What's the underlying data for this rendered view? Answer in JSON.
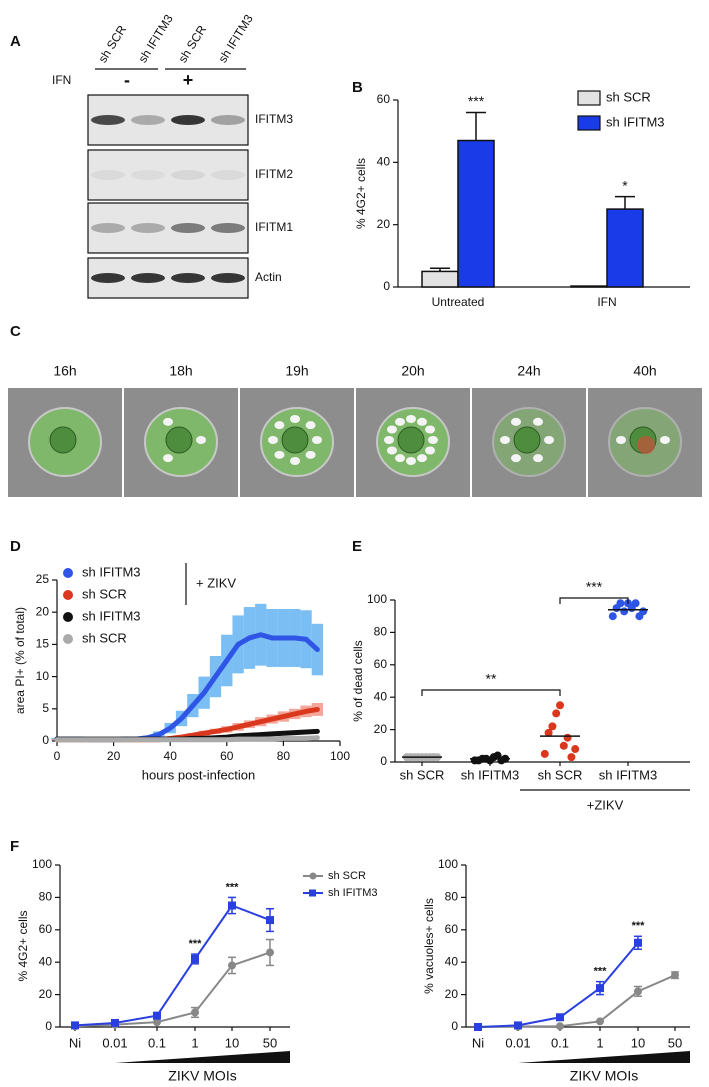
{
  "blot": {
    "panel": "A",
    "lanes": [
      "sh SCR",
      "sh IFITM3",
      "sh SCR",
      "sh IFITM3"
    ],
    "treatment_label": "IFN",
    "treatments": [
      "-",
      "+"
    ],
    "bands": [
      "IFITM3",
      "IFITM2",
      "IFITM1",
      "Actin"
    ]
  },
  "timelapse": {
    "panel": "C",
    "times": [
      "16h",
      "18h",
      "19h",
      "20h",
      "24h",
      "40h"
    ]
  },
  "chart_data": [
    {
      "panel": "B",
      "type": "bar",
      "ylabel": "% 4G2+ cells",
      "categories": [
        "Untreated",
        "IFN"
      ],
      "ylim": [
        0,
        60
      ],
      "yticks": [
        0,
        20,
        40,
        60
      ],
      "legend": "upper right",
      "series": [
        {
          "name": "sh SCR",
          "color": "#e2e2e2",
          "values": [
            5,
            0.3
          ],
          "errors": [
            1,
            null
          ]
        },
        {
          "name": "sh IFITM3",
          "color": "#1a3be8",
          "values": [
            47,
            25
          ],
          "errors": [
            9,
            4
          ]
        }
      ],
      "annotations": [
        "***",
        "*"
      ]
    },
    {
      "panel": "D",
      "type": "line",
      "xlabel": "hours post-infection",
      "ylabel": "area PI+ (% of total)",
      "x": [
        0,
        4,
        8,
        12,
        16,
        20,
        24,
        28,
        32,
        36,
        40,
        44,
        48,
        52,
        56,
        60,
        64,
        68,
        72,
        76,
        80,
        84,
        88,
        92
      ],
      "xlim": [
        0,
        100
      ],
      "xticks": [
        0,
        20,
        40,
        60,
        80,
        100
      ],
      "ylim": [
        0,
        25
      ],
      "yticks": [
        0,
        5,
        10,
        15,
        20,
        25
      ],
      "group_label": "+ ZIKV",
      "legend": "upper left",
      "series": [
        {
          "name": "sh IFITM3",
          "color": "#2f55e6",
          "band_color": "#5aaef0",
          "values": [
            0.3,
            0.3,
            0.3,
            0.2,
            0.2,
            0.2,
            0.3,
            0.3,
            0.5,
            1.0,
            2.0,
            3.5,
            5.5,
            7.5,
            10,
            12.5,
            15,
            16,
            16.5,
            16,
            16,
            16,
            15.8,
            14.2
          ],
          "errors": [
            0.2,
            0.2,
            0.2,
            0.2,
            0.2,
            0.2,
            0.2,
            0.2,
            0.3,
            0.5,
            0.8,
            1.2,
            1.8,
            2.5,
            3.2,
            4,
            4.5,
            4.8,
            4.8,
            4.5,
            4.5,
            4.5,
            4.5,
            4
          ]
        },
        {
          "name": "sh SCR",
          "color": "#d9381e",
          "band_color": "#f09080",
          "values": [
            0.2,
            0.2,
            0.2,
            0.2,
            0.2,
            0.2,
            0.2,
            0.2,
            0.2,
            0.2,
            0.4,
            0.6,
            0.9,
            1.2,
            1.5,
            1.8,
            2.2,
            2.6,
            3.0,
            3.4,
            3.8,
            4.2,
            4.6,
            4.9
          ],
          "errors": [
            0.1,
            0.1,
            0.1,
            0.1,
            0.1,
            0.1,
            0.1,
            0.1,
            0.1,
            0.1,
            0.2,
            0.3,
            0.3,
            0.4,
            0.4,
            0.5,
            0.6,
            0.6,
            0.7,
            0.7,
            0.8,
            0.8,
            0.9,
            1.0
          ]
        },
        {
          "name": "sh IFITM3",
          "color": "#111111",
          "values": [
            0.3,
            0.3,
            0.3,
            0.3,
            0.3,
            0.3,
            0.3,
            0.3,
            0.3,
            0.3,
            0.3,
            0.3,
            0.4,
            0.4,
            0.5,
            0.6,
            0.8,
            0.9,
            1.0,
            1.1,
            1.2,
            1.3,
            1.4,
            1.5
          ]
        },
        {
          "name": "sh SCR",
          "color": "#aaaaaa",
          "values": [
            0.2,
            0.2,
            0.2,
            0.2,
            0.2,
            0.2,
            0.2,
            0.2,
            0.2,
            0.2,
            0.2,
            0.2,
            0.2,
            0.2,
            0.2,
            0.2,
            0.3,
            0.3,
            0.3,
            0.3,
            0.4,
            0.4,
            0.4,
            0.5
          ]
        }
      ]
    },
    {
      "panel": "E",
      "type": "strip",
      "ylabel": "% of dead cells",
      "categories": [
        "sh SCR",
        "sh IFITM3",
        "sh SCR",
        "sh IFITM3"
      ],
      "group_label": "+ZIKV",
      "ylim": [
        0,
        100
      ],
      "yticks": [
        0,
        20,
        40,
        60,
        80,
        100
      ],
      "points": [
        {
          "color": "#b0b0b0",
          "values": [
            3,
            3,
            3,
            3,
            3,
            3,
            3,
            3,
            3
          ]
        },
        {
          "color": "#111111",
          "values": [
            1,
            1,
            2,
            2,
            1,
            3,
            4,
            1,
            2
          ]
        },
        {
          "color": "#d9381e",
          "values": [
            5,
            18,
            22,
            30,
            35,
            10,
            15,
            3,
            8
          ]
        },
        {
          "color": "#2f55e6",
          "values": [
            90,
            95,
            98,
            93,
            98,
            95,
            98,
            90,
            93
          ]
        }
      ],
      "medians": [
        3,
        2,
        16,
        94
      ],
      "annotations": [
        "**",
        "***"
      ]
    },
    {
      "panel": "F",
      "type": "line",
      "ylabel": "% 4G2+ cells",
      "xlabel": "ZIKV MOIs",
      "categories": [
        "Ni",
        "0.01",
        "0.1",
        "1",
        "10",
        "50"
      ],
      "ylim": [
        0,
        100
      ],
      "yticks": [
        0,
        20,
        40,
        60,
        80,
        100
      ],
      "legend": "right",
      "series": [
        {
          "name": "sh SCR",
          "color": "#888888",
          "marker": "circle",
          "values": [
            0.5,
            1.5,
            3,
            9,
            38,
            46
          ],
          "errors": [
            null,
            null,
            null,
            3,
            5,
            8
          ]
        },
        {
          "name": "sh IFITM3",
          "color": "#2a3fe0",
          "marker": "square",
          "values": [
            1,
            2.5,
            7,
            42,
            75,
            66
          ],
          "errors": [
            null,
            null,
            1,
            3,
            5,
            7
          ]
        }
      ],
      "annotations": [
        "***",
        "***"
      ]
    },
    {
      "type": "line",
      "ylabel": "% vacuoles+ cells",
      "xlabel": "ZIKV MOIs",
      "categories": [
        "Ni",
        "0.01",
        "0.1",
        "1",
        "10",
        "50"
      ],
      "ylim": [
        0,
        100
      ],
      "yticks": [
        0,
        20,
        40,
        60,
        80,
        100
      ],
      "series": [
        {
          "color": "#888888",
          "marker": "circle",
          "values": [
            0,
            0.3,
            0.5,
            3.5,
            22,
            32
          ],
          "errors": [
            null,
            null,
            null,
            null,
            3,
            2
          ]
        },
        {
          "color": "#2a3fe0",
          "marker": "square",
          "values": [
            0,
            1,
            6,
            24,
            52,
            null
          ],
          "errors": [
            null,
            null,
            null,
            4,
            4,
            null
          ]
        }
      ],
      "annotations": [
        "***",
        "***"
      ]
    }
  ]
}
